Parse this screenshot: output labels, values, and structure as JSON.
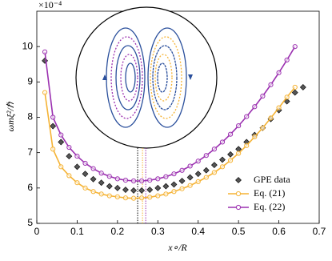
{
  "chart_data": {
    "type": "line",
    "x_label": "x∘/R",
    "y_label": "ωmξ²/ℏ",
    "y_multiplier": "×10⁻⁴",
    "xlim": [
      0,
      0.7
    ],
    "xticks": [
      0,
      0.1,
      0.2,
      0.3,
      0.4,
      0.5,
      0.6,
      0.7
    ],
    "ylim": [
      5,
      11
    ],
    "yticks": [
      5,
      6,
      7,
      8,
      9,
      10
    ],
    "legend": "lower right",
    "series": [
      {
        "name": "GPE data",
        "color": "#555555",
        "marker": "diamond",
        "line": false,
        "x": [
          0.02,
          0.04,
          0.06,
          0.08,
          0.1,
          0.12,
          0.14,
          0.16,
          0.18,
          0.2,
          0.22,
          0.24,
          0.26,
          0.28,
          0.3,
          0.32,
          0.34,
          0.36,
          0.38,
          0.4,
          0.42,
          0.44,
          0.46,
          0.48,
          0.5,
          0.52,
          0.54,
          0.56,
          0.58,
          0.6,
          0.62,
          0.64,
          0.66
        ],
        "values": [
          9.6,
          7.75,
          7.3,
          6.9,
          6.6,
          6.4,
          6.25,
          6.15,
          6.05,
          6.0,
          5.95,
          5.93,
          5.93,
          5.95,
          6.0,
          6.05,
          6.1,
          6.2,
          6.3,
          6.4,
          6.5,
          6.65,
          6.8,
          6.95,
          7.1,
          7.3,
          7.5,
          7.7,
          7.95,
          8.2,
          8.45,
          8.7,
          8.85
        ]
      },
      {
        "name": "Eq. (21)",
        "color": "#f5b335",
        "marker": "circle",
        "line": true,
        "x": [
          0.02,
          0.04,
          0.06,
          0.08,
          0.1,
          0.12,
          0.14,
          0.16,
          0.18,
          0.2,
          0.22,
          0.24,
          0.26,
          0.28,
          0.3,
          0.32,
          0.34,
          0.36,
          0.38,
          0.4,
          0.42,
          0.44,
          0.46,
          0.48,
          0.5,
          0.52,
          0.54,
          0.56,
          0.58,
          0.6,
          0.62,
          0.64
        ],
        "values": [
          8.7,
          7.1,
          6.6,
          6.35,
          6.15,
          6.0,
          5.9,
          5.83,
          5.78,
          5.75,
          5.72,
          5.71,
          5.72,
          5.74,
          5.78,
          5.83,
          5.9,
          5.98,
          6.07,
          6.18,
          6.3,
          6.44,
          6.6,
          6.78,
          6.98,
          7.2,
          7.45,
          7.7,
          7.98,
          8.27,
          8.57,
          8.85
        ]
      },
      {
        "name": "Eq. (22)",
        "color": "#9b30b0",
        "marker": "circle",
        "line": true,
        "x": [
          0.02,
          0.04,
          0.06,
          0.08,
          0.1,
          0.12,
          0.14,
          0.16,
          0.18,
          0.2,
          0.22,
          0.24,
          0.26,
          0.28,
          0.3,
          0.32,
          0.34,
          0.36,
          0.38,
          0.4,
          0.42,
          0.44,
          0.46,
          0.48,
          0.5,
          0.52,
          0.54,
          0.56,
          0.58,
          0.6,
          0.62,
          0.64
        ],
        "values": [
          9.85,
          8.0,
          7.5,
          7.15,
          6.9,
          6.7,
          6.55,
          6.42,
          6.33,
          6.26,
          6.22,
          6.2,
          6.2,
          6.22,
          6.26,
          6.32,
          6.4,
          6.5,
          6.62,
          6.76,
          6.92,
          7.1,
          7.3,
          7.52,
          7.76,
          8.02,
          8.3,
          8.6,
          8.92,
          9.26,
          9.62,
          10.0
        ]
      }
    ],
    "vlines": [
      {
        "x": 0.25,
        "color": "#000000"
      },
      {
        "x": 0.262,
        "color": "#f5b335"
      },
      {
        "x": 0.27,
        "color": "#9b30b0"
      }
    ]
  }
}
